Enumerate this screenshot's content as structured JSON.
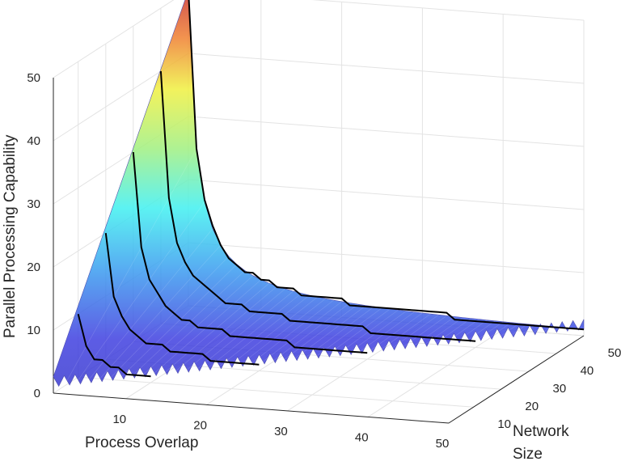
{
  "chart_data": {
    "type": "surface",
    "xlabel": "Process Overlap",
    "ylabel": "Network Size",
    "zlabel": "Parallel Processing Capability",
    "x_ticks": [
      10,
      20,
      30,
      40,
      50
    ],
    "y_ticks": [
      10,
      20,
      30,
      40,
      50
    ],
    "z_ticks": [
      0,
      10,
      20,
      30,
      40,
      50
    ],
    "xlim": [
      1,
      50
    ],
    "ylim": [
      1,
      50
    ],
    "zlim": [
      0,
      50
    ],
    "surface": "capability ≈ network_size / process_overlap, defined for overlap ≤ network_size",
    "contour_lines": [
      {
        "network_size": 10,
        "values": [
          10,
          5,
          3,
          2,
          2,
          1,
          1,
          1,
          1,
          1
        ]
      },
      {
        "network_size": 20,
        "values": [
          20,
          10,
          6,
          5,
          4,
          3,
          2,
          2,
          2,
          2
        ]
      },
      {
        "network_size": 30,
        "values": [
          30,
          15,
          10,
          7,
          6,
          5,
          4,
          3,
          3,
          3
        ]
      },
      {
        "network_size": 40,
        "values": [
          40,
          20,
          13,
          10,
          8,
          6,
          5,
          5,
          4,
          4
        ]
      },
      {
        "network_size": 50,
        "values": [
          50,
          25,
          16,
          12,
          10,
          8,
          7,
          6,
          5,
          5
        ]
      }
    ],
    "colormap": "jet",
    "grid": true
  }
}
